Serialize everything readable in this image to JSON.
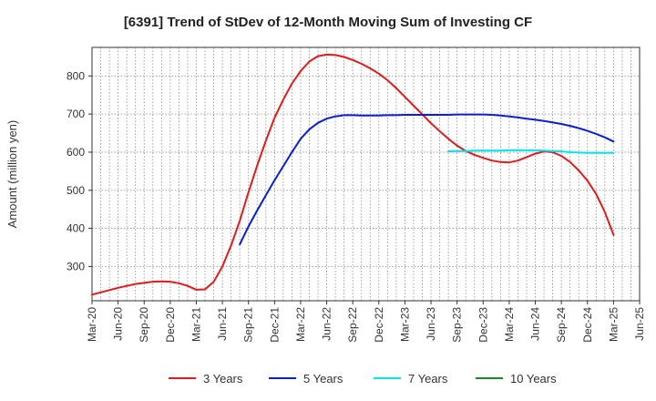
{
  "chart_data": {
    "type": "line",
    "title": "[6391]  Trend of StDev of 12-Month Moving Sum of Investing CF",
    "ylabel": "Amount (million yen)",
    "xlabel": "",
    "ylim": [
      210,
      875
    ],
    "yticks": [
      300,
      400,
      500,
      600,
      700,
      800
    ],
    "xlim": [
      "2020-03",
      "2025-06"
    ],
    "grid": true,
    "legend_position": "bottom",
    "x_ticks": [
      {
        "label": "Mar-20",
        "date": "2020-03"
      },
      {
        "label": "Jun-20",
        "date": "2020-06"
      },
      {
        "label": "Sep-20",
        "date": "2020-09"
      },
      {
        "label": "Dec-20",
        "date": "2020-12"
      },
      {
        "label": "Mar-21",
        "date": "2021-03"
      },
      {
        "label": "Jun-21",
        "date": "2021-06"
      },
      {
        "label": "Sep-21",
        "date": "2021-09"
      },
      {
        "label": "Dec-21",
        "date": "2021-12"
      },
      {
        "label": "Mar-22",
        "date": "2022-03"
      },
      {
        "label": "Jun-22",
        "date": "2022-06"
      },
      {
        "label": "Sep-22",
        "date": "2022-09"
      },
      {
        "label": "Dec-22",
        "date": "2022-12"
      },
      {
        "label": "Mar-23",
        "date": "2023-03"
      },
      {
        "label": "Jun-23",
        "date": "2023-06"
      },
      {
        "label": "Sep-23",
        "date": "2023-09"
      },
      {
        "label": "Dec-23",
        "date": "2023-12"
      },
      {
        "label": "Mar-24",
        "date": "2024-03"
      },
      {
        "label": "Jun-24",
        "date": "2024-06"
      },
      {
        "label": "Sep-24",
        "date": "2024-09"
      },
      {
        "label": "Dec-24",
        "date": "2024-12"
      },
      {
        "label": "Mar-25",
        "date": "2025-03"
      },
      {
        "label": "Jun-25",
        "date": "2025-06"
      }
    ],
    "series": [
      {
        "name": "3 Years",
        "color": "#e31a1c",
        "points": [
          [
            "2020-03",
            226
          ],
          [
            "2020-04",
            232
          ],
          [
            "2020-05",
            238
          ],
          [
            "2020-06",
            244
          ],
          [
            "2020-07",
            249
          ],
          [
            "2020-08",
            254
          ],
          [
            "2020-09",
            257
          ],
          [
            "2020-10",
            260
          ],
          [
            "2020-11",
            261
          ],
          [
            "2020-12",
            260
          ],
          [
            "2021-01",
            256
          ],
          [
            "2021-02",
            249
          ],
          [
            "2021-03",
            239
          ],
          [
            "2021-04",
            240
          ],
          [
            "2021-05",
            260
          ],
          [
            "2021-06",
            300
          ],
          [
            "2021-07",
            355
          ],
          [
            "2021-08",
            420
          ],
          [
            "2021-09",
            495
          ],
          [
            "2021-10",
            565
          ],
          [
            "2021-11",
            630
          ],
          [
            "2021-12",
            690
          ],
          [
            "2022-01",
            738
          ],
          [
            "2022-02",
            780
          ],
          [
            "2022-03",
            813
          ],
          [
            "2022-04",
            838
          ],
          [
            "2022-05",
            852
          ],
          [
            "2022-06",
            856
          ],
          [
            "2022-07",
            855
          ],
          [
            "2022-08",
            850
          ],
          [
            "2022-09",
            842
          ],
          [
            "2022-10",
            832
          ],
          [
            "2022-11",
            820
          ],
          [
            "2022-12",
            806
          ],
          [
            "2023-01",
            789
          ],
          [
            "2023-02",
            768
          ],
          [
            "2023-03",
            745
          ],
          [
            "2023-04",
            722
          ],
          [
            "2023-05",
            699
          ],
          [
            "2023-06",
            676
          ],
          [
            "2023-07",
            655
          ],
          [
            "2023-08",
            635
          ],
          [
            "2023-09",
            617
          ],
          [
            "2023-10",
            603
          ],
          [
            "2023-11",
            593
          ],
          [
            "2023-12",
            585
          ],
          [
            "2024-01",
            578
          ],
          [
            "2024-02",
            574
          ],
          [
            "2024-03",
            573
          ],
          [
            "2024-04",
            578
          ],
          [
            "2024-05",
            587
          ],
          [
            "2024-06",
            596
          ],
          [
            "2024-07",
            602
          ],
          [
            "2024-08",
            600
          ],
          [
            "2024-09",
            590
          ],
          [
            "2024-10",
            574
          ],
          [
            "2024-11",
            552
          ],
          [
            "2024-12",
            525
          ],
          [
            "2025-01",
            490
          ],
          [
            "2025-02",
            443
          ],
          [
            "2025-03",
            383
          ]
        ]
      },
      {
        "name": "5 Years",
        "color": "#0a1fd0",
        "points": [
          [
            "2021-08",
            358
          ],
          [
            "2021-09",
            405
          ],
          [
            "2021-10",
            447
          ],
          [
            "2021-11",
            487
          ],
          [
            "2021-12",
            526
          ],
          [
            "2022-01",
            563
          ],
          [
            "2022-02",
            600
          ],
          [
            "2022-03",
            635
          ],
          [
            "2022-04",
            660
          ],
          [
            "2022-05",
            677
          ],
          [
            "2022-06",
            688
          ],
          [
            "2022-07",
            694
          ],
          [
            "2022-08",
            697
          ],
          [
            "2022-09",
            697
          ],
          [
            "2022-10",
            696
          ],
          [
            "2022-11",
            696
          ],
          [
            "2022-12",
            696
          ],
          [
            "2023-01",
            697
          ],
          [
            "2023-02",
            697
          ],
          [
            "2023-03",
            698
          ],
          [
            "2023-04",
            698
          ],
          [
            "2023-05",
            698
          ],
          [
            "2023-06",
            698
          ],
          [
            "2023-07",
            698
          ],
          [
            "2023-08",
            698
          ],
          [
            "2023-09",
            699
          ],
          [
            "2023-10",
            699
          ],
          [
            "2023-11",
            699
          ],
          [
            "2023-12",
            699
          ],
          [
            "2024-01",
            698
          ],
          [
            "2024-02",
            696
          ],
          [
            "2024-03",
            694
          ],
          [
            "2024-04",
            691
          ],
          [
            "2024-05",
            688
          ],
          [
            "2024-06",
            685
          ],
          [
            "2024-07",
            682
          ],
          [
            "2024-08",
            678
          ],
          [
            "2024-09",
            674
          ],
          [
            "2024-10",
            669
          ],
          [
            "2024-11",
            663
          ],
          [
            "2024-12",
            656
          ],
          [
            "2025-01",
            648
          ],
          [
            "2025-02",
            639
          ],
          [
            "2025-03",
            628
          ]
        ]
      },
      {
        "name": "7 Years",
        "color": "#00e5ee",
        "points": [
          [
            "2023-08",
            602
          ],
          [
            "2023-09",
            603
          ],
          [
            "2023-10",
            603
          ],
          [
            "2023-11",
            604
          ],
          [
            "2023-12",
            604
          ],
          [
            "2024-01",
            604
          ],
          [
            "2024-02",
            604
          ],
          [
            "2024-03",
            605
          ],
          [
            "2024-04",
            605
          ],
          [
            "2024-05",
            605
          ],
          [
            "2024-06",
            605
          ],
          [
            "2024-07",
            604
          ],
          [
            "2024-08",
            603
          ],
          [
            "2024-09",
            602
          ],
          [
            "2024-10",
            600
          ],
          [
            "2024-11",
            599
          ],
          [
            "2024-12",
            598
          ],
          [
            "2025-01",
            598
          ],
          [
            "2025-02",
            598
          ],
          [
            "2025-03",
            598
          ]
        ]
      },
      {
        "name": "10 Years",
        "color": "#1a8a1a",
        "points": []
      }
    ]
  }
}
